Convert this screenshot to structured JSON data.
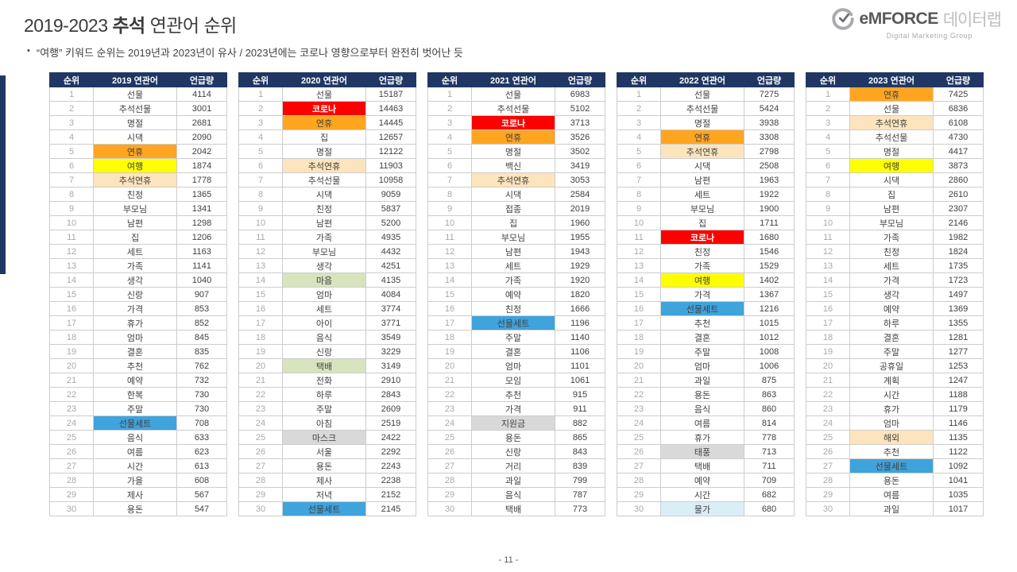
{
  "title": {
    "prefix": "2019-2023 ",
    "highlight": "추석",
    "suffix": " 연관어 순위"
  },
  "subtitle": {
    "bullet": "•",
    "text": "“여행” 키워드 순위는 2019년과 2023년이 유사 / 2023년에는 코로나 영향으로부터 완전히 벗어난 듯"
  },
  "logo": {
    "brand": "eMFORCE",
    "brand_suffix": "데이터랩",
    "tagline": "Digital Marketing Group"
  },
  "footer": {
    "page_number": "- 11 -"
  },
  "colors": {
    "navy": "#203764",
    "orange": "#FFA520",
    "yellow": "#FFFF00",
    "tan": "#FCE4BC",
    "red": "#FF0000",
    "blue": "#3FA3DC",
    "green": "#D7E4BD",
    "gray": "#D9D9D9",
    "lightblue": "#DAEEF8"
  },
  "tables": [
    {
      "headers": [
        "순위",
        "2019 연관어",
        "언급량"
      ],
      "rows": [
        [
          1,
          "선물",
          4114,
          ""
        ],
        [
          2,
          "추석선물",
          3001,
          ""
        ],
        [
          3,
          "명절",
          2681,
          ""
        ],
        [
          4,
          "시댁",
          2090,
          ""
        ],
        [
          5,
          "연휴",
          2042,
          "orange"
        ],
        [
          6,
          "여행",
          1874,
          "yellow"
        ],
        [
          7,
          "추석연휴",
          1778,
          "tan"
        ],
        [
          8,
          "친정",
          1365,
          ""
        ],
        [
          9,
          "부모님",
          1341,
          ""
        ],
        [
          10,
          "남편",
          1298,
          ""
        ],
        [
          11,
          "집",
          1206,
          ""
        ],
        [
          12,
          "세트",
          1163,
          ""
        ],
        [
          13,
          "가족",
          1141,
          ""
        ],
        [
          14,
          "생각",
          1040,
          ""
        ],
        [
          15,
          "신랑",
          907,
          ""
        ],
        [
          16,
          "가격",
          853,
          ""
        ],
        [
          17,
          "휴가",
          852,
          ""
        ],
        [
          18,
          "엄마",
          845,
          ""
        ],
        [
          19,
          "결혼",
          835,
          ""
        ],
        [
          20,
          "추천",
          762,
          ""
        ],
        [
          21,
          "예약",
          732,
          ""
        ],
        [
          22,
          "한복",
          730,
          ""
        ],
        [
          23,
          "주말",
          730,
          ""
        ],
        [
          24,
          "선물세트",
          708,
          "blue"
        ],
        [
          25,
          "음식",
          633,
          ""
        ],
        [
          26,
          "여름",
          623,
          ""
        ],
        [
          27,
          "시간",
          613,
          ""
        ],
        [
          28,
          "가을",
          608,
          ""
        ],
        [
          29,
          "제사",
          567,
          ""
        ],
        [
          30,
          "용돈",
          547,
          ""
        ]
      ]
    },
    {
      "headers": [
        "순위",
        "2020 연관어",
        "언급량"
      ],
      "rows": [
        [
          1,
          "선물",
          15187,
          ""
        ],
        [
          2,
          "코로나",
          14463,
          "red"
        ],
        [
          3,
          "연휴",
          14445,
          "orange"
        ],
        [
          4,
          "집",
          12657,
          ""
        ],
        [
          5,
          "명절",
          12122,
          ""
        ],
        [
          6,
          "추석연휴",
          11903,
          "tan"
        ],
        [
          7,
          "추석선물",
          10958,
          ""
        ],
        [
          8,
          "시댁",
          9059,
          ""
        ],
        [
          9,
          "친정",
          5837,
          ""
        ],
        [
          10,
          "남편",
          5200,
          ""
        ],
        [
          11,
          "가족",
          4935,
          ""
        ],
        [
          12,
          "부모님",
          4432,
          ""
        ],
        [
          13,
          "생각",
          4251,
          ""
        ],
        [
          14,
          "마음",
          4135,
          "green"
        ],
        [
          15,
          "엄마",
          4084,
          ""
        ],
        [
          16,
          "세트",
          3774,
          ""
        ],
        [
          17,
          "아이",
          3771,
          ""
        ],
        [
          18,
          "음식",
          3549,
          ""
        ],
        [
          19,
          "신랑",
          3229,
          ""
        ],
        [
          20,
          "택배",
          3149,
          "green"
        ],
        [
          21,
          "전화",
          2910,
          ""
        ],
        [
          22,
          "하루",
          2843,
          ""
        ],
        [
          23,
          "주말",
          2609,
          ""
        ],
        [
          24,
          "아침",
          2519,
          ""
        ],
        [
          25,
          "마스크",
          2422,
          "gray"
        ],
        [
          26,
          "서울",
          2292,
          ""
        ],
        [
          27,
          "용돈",
          2243,
          ""
        ],
        [
          28,
          "제사",
          2238,
          ""
        ],
        [
          29,
          "저녁",
          2152,
          ""
        ],
        [
          30,
          "선물세트",
          2145,
          "blue"
        ]
      ]
    },
    {
      "headers": [
        "순위",
        "2021 연관어",
        "언급량"
      ],
      "rows": [
        [
          1,
          "선물",
          6983,
          ""
        ],
        [
          2,
          "추석선물",
          5102,
          ""
        ],
        [
          3,
          "코로나",
          3713,
          "red"
        ],
        [
          4,
          "연휴",
          3526,
          "orange"
        ],
        [
          5,
          "명절",
          3502,
          ""
        ],
        [
          6,
          "백신",
          3419,
          ""
        ],
        [
          7,
          "추석연휴",
          3053,
          "tan"
        ],
        [
          8,
          "시댁",
          2584,
          ""
        ],
        [
          9,
          "접종",
          2019,
          ""
        ],
        [
          10,
          "집",
          1960,
          ""
        ],
        [
          11,
          "부모님",
          1955,
          ""
        ],
        [
          12,
          "남편",
          1943,
          ""
        ],
        [
          13,
          "세트",
          1929,
          ""
        ],
        [
          14,
          "가족",
          1920,
          ""
        ],
        [
          15,
          "예약",
          1820,
          ""
        ],
        [
          16,
          "친정",
          1666,
          ""
        ],
        [
          17,
          "선물세트",
          1196,
          "blue"
        ],
        [
          18,
          "주말",
          1140,
          ""
        ],
        [
          19,
          "결혼",
          1106,
          ""
        ],
        [
          20,
          "엄마",
          1101,
          ""
        ],
        [
          21,
          "모임",
          1061,
          ""
        ],
        [
          22,
          "추천",
          915,
          ""
        ],
        [
          23,
          "가격",
          911,
          ""
        ],
        [
          24,
          "지원금",
          882,
          "gray"
        ],
        [
          25,
          "용돈",
          865,
          ""
        ],
        [
          26,
          "신랑",
          843,
          ""
        ],
        [
          27,
          "거리",
          839,
          ""
        ],
        [
          28,
          "과일",
          799,
          ""
        ],
        [
          29,
          "음식",
          787,
          ""
        ],
        [
          30,
          "택배",
          773,
          ""
        ]
      ]
    },
    {
      "headers": [
        "순위",
        "2022 연관어",
        "언급량"
      ],
      "rows": [
        [
          1,
          "선물",
          7275,
          ""
        ],
        [
          2,
          "추석선물",
          5424,
          ""
        ],
        [
          3,
          "명절",
          3938,
          ""
        ],
        [
          4,
          "연휴",
          3308,
          "orange"
        ],
        [
          5,
          "추석연휴",
          2798,
          "tan"
        ],
        [
          6,
          "시댁",
          2508,
          ""
        ],
        [
          7,
          "남편",
          1963,
          ""
        ],
        [
          8,
          "세트",
          1922,
          ""
        ],
        [
          9,
          "부모님",
          1900,
          ""
        ],
        [
          10,
          "집",
          1711,
          ""
        ],
        [
          11,
          "코로나",
          1680,
          "red"
        ],
        [
          12,
          "친정",
          1546,
          ""
        ],
        [
          13,
          "가족",
          1529,
          ""
        ],
        [
          14,
          "여행",
          1402,
          "yellow"
        ],
        [
          15,
          "가격",
          1367,
          ""
        ],
        [
          16,
          "선물세트",
          1216,
          "blue"
        ],
        [
          17,
          "추천",
          1015,
          ""
        ],
        [
          18,
          "결혼",
          1012,
          ""
        ],
        [
          19,
          "주말",
          1008,
          ""
        ],
        [
          20,
          "엄마",
          1006,
          ""
        ],
        [
          21,
          "과일",
          875,
          ""
        ],
        [
          22,
          "용돈",
          863,
          ""
        ],
        [
          23,
          "음식",
          860,
          ""
        ],
        [
          24,
          "여름",
          814,
          ""
        ],
        [
          25,
          "휴가",
          778,
          ""
        ],
        [
          26,
          "태풍",
          713,
          "gray"
        ],
        [
          27,
          "택배",
          711,
          ""
        ],
        [
          28,
          "예약",
          709,
          ""
        ],
        [
          29,
          "시간",
          682,
          ""
        ],
        [
          30,
          "물가",
          680,
          "lightblue"
        ]
      ]
    },
    {
      "headers": [
        "순위",
        "2023 연관어",
        "언급량"
      ],
      "rows": [
        [
          1,
          "연휴",
          7425,
          "orange"
        ],
        [
          2,
          "선물",
          6836,
          ""
        ],
        [
          3,
          "추석연휴",
          6108,
          "tan"
        ],
        [
          4,
          "추석선물",
          4730,
          ""
        ],
        [
          5,
          "명절",
          4417,
          ""
        ],
        [
          6,
          "여행",
          3873,
          "yellow"
        ],
        [
          7,
          "시댁",
          2860,
          ""
        ],
        [
          8,
          "집",
          2610,
          ""
        ],
        [
          9,
          "남편",
          2307,
          ""
        ],
        [
          10,
          "부모님",
          2146,
          ""
        ],
        [
          11,
          "가족",
          1982,
          ""
        ],
        [
          12,
          "친정",
          1824,
          ""
        ],
        [
          13,
          "세트",
          1735,
          ""
        ],
        [
          14,
          "가격",
          1723,
          ""
        ],
        [
          15,
          "생각",
          1497,
          ""
        ],
        [
          16,
          "예약",
          1369,
          ""
        ],
        [
          17,
          "하루",
          1355,
          ""
        ],
        [
          18,
          "결혼",
          1281,
          ""
        ],
        [
          19,
          "주말",
          1277,
          ""
        ],
        [
          20,
          "공휴일",
          1253,
          ""
        ],
        [
          21,
          "계획",
          1247,
          ""
        ],
        [
          22,
          "시간",
          1188,
          ""
        ],
        [
          23,
          "휴가",
          1179,
          ""
        ],
        [
          24,
          "엄마",
          1146,
          ""
        ],
        [
          25,
          "해외",
          1135,
          "tan"
        ],
        [
          26,
          "추천",
          1122,
          ""
        ],
        [
          27,
          "선물세트",
          1092,
          "blue"
        ],
        [
          28,
          "용돈",
          1041,
          ""
        ],
        [
          29,
          "여름",
          1035,
          ""
        ],
        [
          30,
          "과일",
          1017,
          ""
        ]
      ]
    }
  ]
}
